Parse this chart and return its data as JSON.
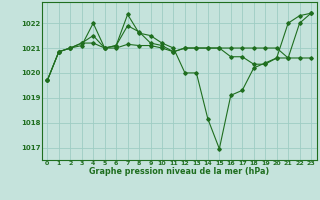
{
  "title": "Graphe pression niveau de la mer (hPa)",
  "xlim": [
    -0.5,
    23.5
  ],
  "ylim": [
    1016.5,
    1022.85
  ],
  "yticks": [
    1017,
    1018,
    1019,
    1020,
    1021,
    1022
  ],
  "xticks": [
    0,
    1,
    2,
    3,
    4,
    5,
    6,
    7,
    8,
    9,
    10,
    11,
    12,
    13,
    14,
    15,
    16,
    17,
    18,
    19,
    20,
    21,
    22,
    23
  ],
  "bg_color": "#c5e3dc",
  "grid_color": "#9ecdc4",
  "line_color": "#1f6e1f",
  "series1": [
    1019.7,
    1020.85,
    1021.0,
    1021.1,
    1022.0,
    1021.0,
    1021.1,
    1022.35,
    1021.6,
    1021.5,
    1021.2,
    1021.0,
    1020.0,
    1020.0,
    1018.15,
    1016.95,
    1019.1,
    1019.3,
    1020.2,
    1020.4,
    1020.6,
    1022.0,
    1022.3,
    1022.4
  ],
  "series2": [
    1019.7,
    1020.85,
    1021.0,
    1021.2,
    1021.5,
    1021.0,
    1021.1,
    1021.9,
    1021.65,
    1021.2,
    1021.1,
    1020.85,
    1021.0,
    1021.0,
    1021.0,
    1021.0,
    1020.65,
    1020.65,
    1020.35,
    1020.35,
    1020.6,
    1020.6,
    1022.0,
    1022.4
  ],
  "series3": [
    1019.7,
    1020.85,
    1021.0,
    1021.2,
    1021.2,
    1021.0,
    1021.0,
    1021.15,
    1021.1,
    1021.1,
    1021.0,
    1020.85,
    1021.0,
    1021.0,
    1021.0,
    1021.0,
    1021.0,
    1021.0,
    1021.0,
    1021.0,
    1021.0,
    1020.6,
    1020.6,
    1020.6
  ]
}
